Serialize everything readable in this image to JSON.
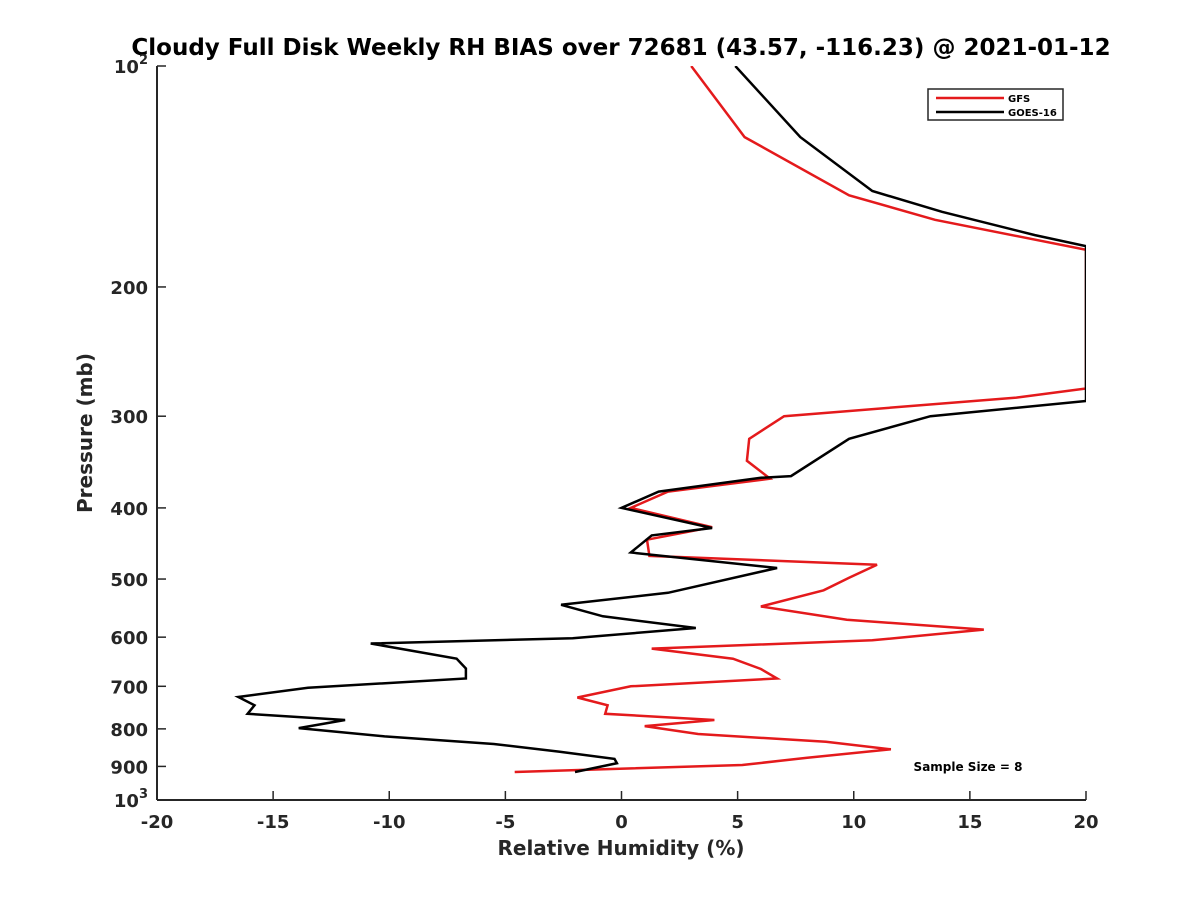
{
  "chart_data": {
    "type": "line",
    "title": "Cloudy Full Disk Weekly RH BIAS over 72681 (43.57, -116.23) @ 2021-01-12",
    "xlabel": "Relative Humidity (%)",
    "ylabel": "Pressure (mb)",
    "xlim": [
      -20,
      20
    ],
    "ylim": [
      100,
      1000
    ],
    "y_scale": "log",
    "y_reversed": true,
    "grid": false,
    "legend_position": "top-right",
    "x_ticks": [
      -20,
      -15,
      -10,
      -5,
      0,
      5,
      10,
      15,
      20
    ],
    "x_tick_labels": [
      "-20",
      "-15",
      "-10",
      "-5",
      "0",
      "5",
      "10",
      "15",
      "20"
    ],
    "y_ticks": [
      {
        "value": 100,
        "base": "10",
        "exp": "2"
      },
      {
        "value": 200,
        "base": "200",
        "exp": ""
      },
      {
        "value": 300,
        "base": "300",
        "exp": ""
      },
      {
        "value": 400,
        "base": "400",
        "exp": ""
      },
      {
        "value": 500,
        "base": "500",
        "exp": ""
      },
      {
        "value": 600,
        "base": "600",
        "exp": ""
      },
      {
        "value": 700,
        "base": "700",
        "exp": ""
      },
      {
        "value": 800,
        "base": "800",
        "exp": ""
      },
      {
        "value": 900,
        "base": "900",
        "exp": ""
      },
      {
        "value": 1000,
        "base": "10",
        "exp": "3"
      }
    ],
    "annotation": "Sample Size = 8",
    "series": [
      {
        "name": "GFS",
        "color": "#e41a1c",
        "points": [
          [
            3.0,
            100
          ],
          [
            5.3,
            125
          ],
          [
            9.8,
            150
          ],
          [
            13.5,
            162
          ],
          [
            20.0,
            178
          ],
          [
            20.0,
            275
          ],
          [
            17.0,
            283
          ],
          [
            7.0,
            300
          ],
          [
            5.5,
            322
          ],
          [
            5.4,
            345
          ],
          [
            6.4,
            365
          ],
          [
            2.0,
            380
          ],
          [
            0.4,
            400
          ],
          [
            3.9,
            425
          ],
          [
            1.1,
            442
          ],
          [
            1.2,
            465
          ],
          [
            11.0,
            478
          ],
          [
            9.8,
            498
          ],
          [
            8.7,
            518
          ],
          [
            6.0,
            545
          ],
          [
            9.7,
            568
          ],
          [
            15.6,
            586
          ],
          [
            10.8,
            606
          ],
          [
            1.3,
            622
          ],
          [
            4.8,
            642
          ],
          [
            6.0,
            663
          ],
          [
            6.7,
            683
          ],
          [
            0.4,
            700
          ],
          [
            -1.9,
            725
          ],
          [
            -0.6,
            743
          ],
          [
            -0.7,
            763
          ],
          [
            4.0,
            778
          ],
          [
            1.0,
            793
          ],
          [
            3.3,
            813
          ],
          [
            8.8,
            833
          ],
          [
            11.6,
            853
          ],
          [
            8.0,
            876
          ],
          [
            5.2,
            896
          ],
          [
            -4.6,
            916
          ]
        ]
      },
      {
        "name": "GOES-16",
        "color": "#000000",
        "points": [
          [
            4.9,
            100
          ],
          [
            7.7,
            125
          ],
          [
            10.8,
            148
          ],
          [
            13.8,
            158
          ],
          [
            17.8,
            170
          ],
          [
            20.0,
            176
          ],
          [
            20.0,
            286
          ],
          [
            13.3,
            300
          ],
          [
            9.8,
            322
          ],
          [
            7.3,
            362
          ],
          [
            6.0,
            364
          ],
          [
            1.6,
            380
          ],
          [
            0.0,
            400
          ],
          [
            3.9,
            426
          ],
          [
            1.3,
            436
          ],
          [
            0.4,
            460
          ],
          [
            6.7,
            483
          ],
          [
            2.0,
            522
          ],
          [
            -2.6,
            542
          ],
          [
            -0.8,
            562
          ],
          [
            3.2,
            583
          ],
          [
            -2.1,
            602
          ],
          [
            -10.8,
            612
          ],
          [
            -7.1,
            642
          ],
          [
            -6.7,
            662
          ],
          [
            -6.7,
            683
          ],
          [
            -13.5,
            703
          ],
          [
            -16.5,
            724
          ],
          [
            -15.8,
            743
          ],
          [
            -16.1,
            763
          ],
          [
            -11.9,
            778
          ],
          [
            -13.9,
            798
          ],
          [
            -10.2,
            819
          ],
          [
            -5.5,
            839
          ],
          [
            -2.7,
            859
          ],
          [
            -0.3,
            879
          ],
          [
            -0.2,
            891
          ],
          [
            -2.0,
            916
          ]
        ]
      }
    ]
  }
}
